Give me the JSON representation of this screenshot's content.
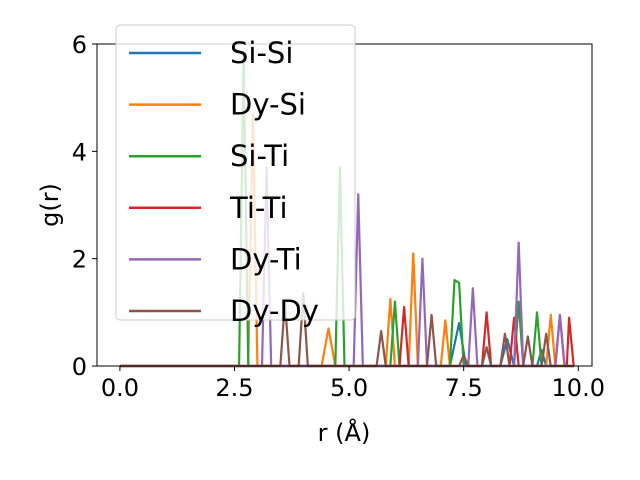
{
  "chart_data": {
    "type": "line",
    "xlabel": "r (Å)",
    "ylabel": "g(r)",
    "xlim": [
      -0.5,
      10.3
    ],
    "ylim": [
      0,
      6
    ],
    "xticks": [
      0.0,
      2.5,
      5.0,
      7.5,
      10.0
    ],
    "xtick_labels": [
      "0.0",
      "2.5",
      "5.0",
      "7.5",
      "10.0"
    ],
    "yticks": [
      0,
      2,
      4,
      6
    ],
    "ytick_labels": [
      "0",
      "2",
      "4",
      "6"
    ],
    "grid": false,
    "legend_position": "top-left",
    "series": [
      {
        "name": "Si-Si",
        "color": "#1f77b4",
        "points": [
          [
            0,
            0
          ],
          [
            7.2,
            0
          ],
          [
            7.4,
            0.8
          ],
          [
            7.55,
            0
          ],
          [
            8.3,
            0
          ],
          [
            8.45,
            0.5
          ],
          [
            8.6,
            0
          ],
          [
            9.1,
            0
          ],
          [
            9.2,
            0.3
          ],
          [
            9.3,
            0
          ],
          [
            9.9,
            0
          ]
        ]
      },
      {
        "name": "Dy-Si",
        "color": "#ff7f0e",
        "points": [
          [
            0,
            0
          ],
          [
            2.8,
            0
          ],
          [
            2.9,
            4.7
          ],
          [
            3.0,
            0
          ],
          [
            4.4,
            0
          ],
          [
            4.55,
            0.7
          ],
          [
            4.7,
            0
          ],
          [
            5.8,
            0
          ],
          [
            5.9,
            1.25
          ],
          [
            6.0,
            0
          ],
          [
            6.3,
            0
          ],
          [
            6.4,
            2.1
          ],
          [
            6.5,
            0
          ],
          [
            7.0,
            0
          ],
          [
            7.1,
            0.85
          ],
          [
            7.2,
            0
          ],
          [
            9.3,
            0
          ],
          [
            9.4,
            0.95
          ],
          [
            9.5,
            0
          ],
          [
            9.9,
            0
          ]
        ]
      },
      {
        "name": "Si-Ti",
        "color": "#2ca02c",
        "points": [
          [
            0,
            0
          ],
          [
            2.6,
            0
          ],
          [
            2.7,
            5.8
          ],
          [
            2.8,
            0
          ],
          [
            4.7,
            0
          ],
          [
            4.8,
            3.7
          ],
          [
            4.9,
            0
          ],
          [
            5.9,
            0
          ],
          [
            6.0,
            1.2
          ],
          [
            6.1,
            0
          ],
          [
            7.2,
            0
          ],
          [
            7.3,
            1.6
          ],
          [
            7.4,
            1.55
          ],
          [
            7.5,
            0
          ],
          [
            8.6,
            0
          ],
          [
            8.7,
            1.2
          ],
          [
            8.8,
            0
          ],
          [
            9.0,
            0
          ],
          [
            9.1,
            1.0
          ],
          [
            9.2,
            0
          ],
          [
            9.9,
            0
          ]
        ]
      },
      {
        "name": "Ti-Ti",
        "color": "#d62728",
        "points": [
          [
            0,
            0
          ],
          [
            6.1,
            0
          ],
          [
            6.2,
            1.1
          ],
          [
            6.3,
            0
          ],
          [
            7.9,
            0
          ],
          [
            8.0,
            1.0
          ],
          [
            8.1,
            0
          ],
          [
            8.5,
            0
          ],
          [
            8.6,
            0.9
          ],
          [
            8.7,
            0
          ],
          [
            9.5,
            0
          ],
          [
            9.6,
            0.95
          ],
          [
            9.7,
            0
          ],
          [
            9.75,
            0
          ],
          [
            9.8,
            0.9
          ],
          [
            9.9,
            0
          ]
        ]
      },
      {
        "name": "Dy-Ti",
        "color": "#9467bd",
        "points": [
          [
            0,
            0
          ],
          [
            3.1,
            0
          ],
          [
            3.2,
            3.7
          ],
          [
            3.3,
            0
          ],
          [
            5.1,
            0
          ],
          [
            5.2,
            3.2
          ],
          [
            5.3,
            0
          ],
          [
            6.5,
            0
          ],
          [
            6.6,
            2.0
          ],
          [
            6.7,
            0
          ],
          [
            7.6,
            0
          ],
          [
            7.7,
            1.45
          ],
          [
            7.8,
            0
          ],
          [
            8.6,
            0
          ],
          [
            8.7,
            2.3
          ],
          [
            8.8,
            0
          ],
          [
            9.5,
            0
          ],
          [
            9.6,
            0.95
          ],
          [
            9.7,
            0
          ],
          [
            9.9,
            0
          ]
        ]
      },
      {
        "name": "Dy-Dy",
        "color": "#8c564b",
        "points": [
          [
            0,
            0
          ],
          [
            3.5,
            0
          ],
          [
            3.6,
            1.2
          ],
          [
            3.7,
            0
          ],
          [
            3.9,
            0
          ],
          [
            4.0,
            1.35
          ],
          [
            4.1,
            0
          ],
          [
            5.6,
            0
          ],
          [
            5.7,
            0.65
          ],
          [
            5.8,
            0
          ],
          [
            6.7,
            0
          ],
          [
            6.8,
            0.95
          ],
          [
            6.9,
            0
          ],
          [
            7.4,
            0
          ],
          [
            7.5,
            0.2
          ],
          [
            7.6,
            0
          ],
          [
            7.9,
            0
          ],
          [
            8.0,
            0.35
          ],
          [
            8.1,
            0
          ],
          [
            8.3,
            0
          ],
          [
            8.4,
            0.6
          ],
          [
            8.5,
            0
          ],
          [
            8.8,
            0
          ],
          [
            8.9,
            0.55
          ],
          [
            9.0,
            0
          ],
          [
            9.2,
            0
          ],
          [
            9.3,
            0.6
          ],
          [
            9.4,
            0
          ],
          [
            9.9,
            0
          ]
        ]
      }
    ]
  }
}
